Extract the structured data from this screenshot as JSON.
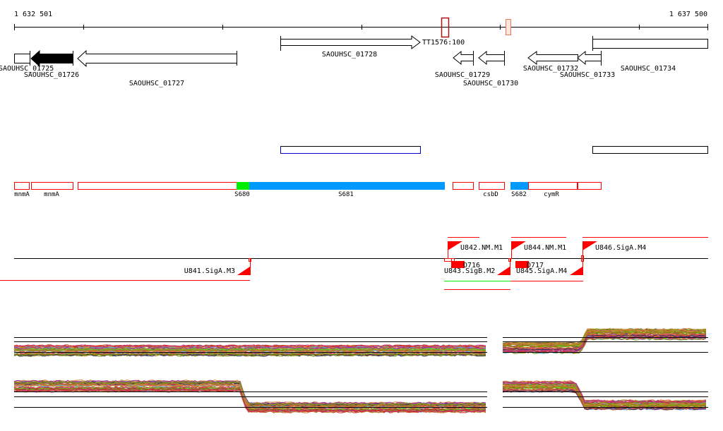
{
  "ruler": {
    "start_label": "1 632 501",
    "end_label": "1 637 500"
  },
  "colors": {
    "gene_outline": "#000000",
    "feature_red": "#ff0000",
    "feature_blue": "#0099ff",
    "feature_green": "#00ee00",
    "marker_dark": "#aa1111",
    "marker_light": "#ee7755",
    "region_blue": "#0000cc"
  },
  "marker_label": "TT1576:100",
  "genes": [
    {
      "id": "SAOUHSC_01725",
      "label": "SAOUHSC_01725"
    },
    {
      "id": "SAOUHSC_01726",
      "label": "SAOUHSC_01726"
    },
    {
      "id": "SAOUHSC_01727",
      "label": "SAOUHSC_01727"
    },
    {
      "id": "SAOUHSC_01728",
      "label": "SAOUHSC_01728"
    },
    {
      "id": "SAOUHSC_01729",
      "label": "SAOUHSC_01729"
    },
    {
      "id": "SAOUHSC_01730",
      "label": "SAOUHSC_01730"
    },
    {
      "id": "SAOUHSC_01732",
      "label": "SAOUHSC_01732"
    },
    {
      "id": "SAOUHSC_01733",
      "label": "SAOUHSC_01733"
    },
    {
      "id": "SAOUHSC_01734",
      "label": "SAOUHSC_01734"
    }
  ],
  "features": [
    {
      "label": "mnmA"
    },
    {
      "label": "mnmA"
    },
    {
      "label": "S680"
    },
    {
      "label": "S681"
    },
    {
      "label": "csbD"
    },
    {
      "label": "S682"
    },
    {
      "label": "cymR"
    }
  ],
  "transcription_units": [
    {
      "label": "U841.SigA.M3"
    },
    {
      "label": "U842.NM.M1"
    },
    {
      "label": "U843.SigB.M2"
    },
    {
      "label": "U844.NM.M1"
    },
    {
      "label": "U845.SigA.M4"
    },
    {
      "label": "U846.SigA.M4"
    },
    {
      "label": "D716"
    },
    {
      "label": "D717"
    }
  ]
}
